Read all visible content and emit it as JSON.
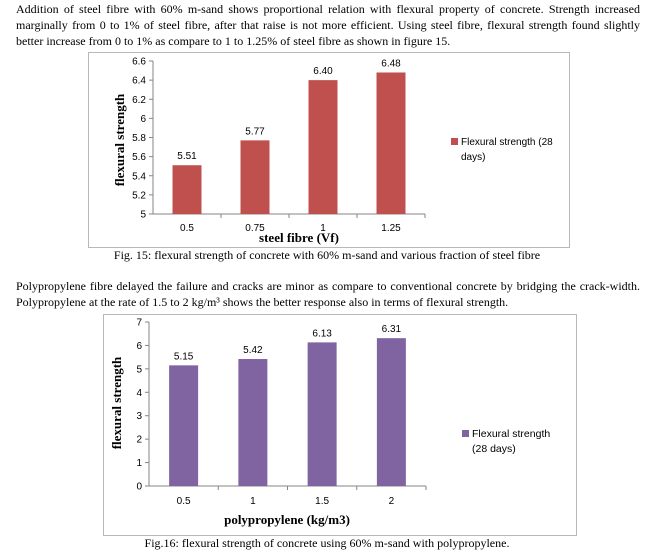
{
  "paragraphs": [
    "Addition of steel fibre with 60% m-sand shows proportional relation with flexural property of concrete. Strength increased marginally from 0 to 1% of steel fibre, after that raise is not more efficient. Using steel fibre, flexural strength found slightly better increase from 0 to 1% as compare to 1 to 1.25% of steel fibre as shown in figure 15.",
    "Polypropylene fibre delayed the failure and cracks are minor as compare to conventional concrete by bridging the crack-width. Polypropylene at the rate of 1.5 to 2 kg/m³ shows the better response also in terms of flexural strength."
  ],
  "captions": {
    "fig15": "Fig. 15: flexural strength of concrete with 60% m-sand and various fraction of steel fibre",
    "fig16": "Fig.16: flexural strength of concrete using 60% m-sand with polypropylene."
  },
  "chart_data": [
    {
      "type": "bar",
      "categories": [
        "0.5",
        "0.75",
        "1",
        "1.25"
      ],
      "series": [
        {
          "name": "Flexural strength (28 days)",
          "values": [
            5.51,
            5.77,
            6.4,
            6.48
          ]
        }
      ],
      "data_labels": [
        "5.51",
        "5.77",
        "6.40",
        "6.48"
      ],
      "xlabel": "steel fibre (Vf)",
      "ylabel": "flexural strength",
      "ylim": [
        5,
        6.6
      ],
      "yticks": [
        "5",
        "5.2",
        "5.4",
        "5.6",
        "5.8",
        "6",
        "6.2",
        "6.4",
        "6.6"
      ],
      "legend": [
        "Flexural strength (28",
        "days)"
      ],
      "legend_position": "right",
      "bar_color": "#c0504d",
      "grid": false
    },
    {
      "type": "bar",
      "categories": [
        "0.5",
        "1",
        "1.5",
        "2"
      ],
      "series": [
        {
          "name": "Flexural strength (28 days)",
          "values": [
            5.15,
            5.42,
            6.13,
            6.31
          ]
        }
      ],
      "data_labels": [
        "5.15",
        "5.42",
        "6.13",
        "6.31"
      ],
      "xlabel": "polypropylene (kg/m3)",
      "ylabel": "flexural strength",
      "ylim": [
        0,
        7
      ],
      "yticks": [
        "0",
        "1",
        "2",
        "3",
        "4",
        "5",
        "6",
        "7"
      ],
      "legend": [
        "Flexural strength",
        "(28 days)"
      ],
      "legend_position": "right",
      "bar_color": "#8064a2",
      "grid": false
    }
  ]
}
